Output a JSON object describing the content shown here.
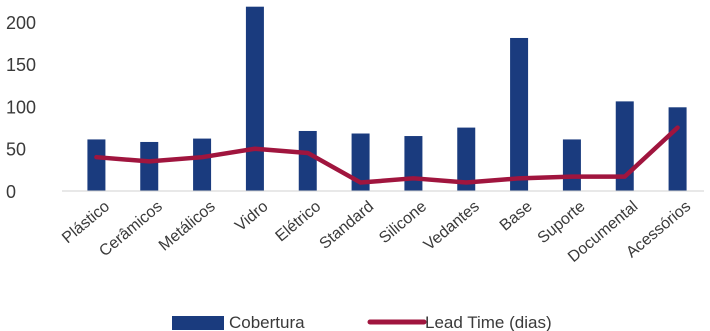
{
  "chart_data": {
    "type": "bar",
    "title": "",
    "xlabel": "",
    "ylabel": "",
    "ylim": [
      0,
      220
    ],
    "yticks": [
      0,
      50,
      100,
      150,
      200
    ],
    "grid": false,
    "legend_position": "bottom-center",
    "categories": [
      "Plástico",
      "Cerâmicos",
      "Metálicos",
      "Vidro",
      "Elétrico",
      "Standard",
      "Silicone",
      "Vedantes",
      "Base",
      "Suporte",
      "Documental",
      "Acessórios"
    ],
    "series": [
      {
        "name": "Cobertura",
        "kind": "bar",
        "color": "#1a3b7e",
        "values": [
          61,
          58,
          62,
          218,
          71,
          68,
          65,
          75,
          181,
          61,
          106,
          99
        ]
      },
      {
        "name": "Lead Time (dias)",
        "kind": "line",
        "color": "#a0153e",
        "values": [
          40,
          35,
          40,
          50,
          45,
          10,
          15,
          10,
          15,
          17,
          17,
          75
        ]
      }
    ]
  }
}
